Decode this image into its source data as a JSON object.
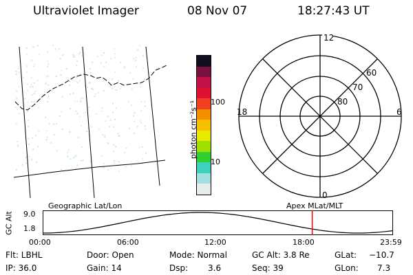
{
  "header": {
    "title": "Ultraviolet Imager",
    "date": "08 Nov 07",
    "time": "18:27:43 UT"
  },
  "colorbar": {
    "unit_label": "photon cm⁻²s⁻¹",
    "ticks": [
      "100",
      "10"
    ],
    "colors": [
      "#101020",
      "#7a1040",
      "#c01048",
      "#e01030",
      "#f04020",
      "#f49000",
      "#f8c000",
      "#e8e800",
      "#a0e000",
      "#30d030",
      "#40d0c0",
      "#a0e0e0",
      "#e6ecec"
    ]
  },
  "polar_plot": {
    "mlt_labels": [
      "12",
      "18",
      "6",
      "0"
    ],
    "lat_labels": [
      "60",
      "70",
      "80"
    ]
  },
  "map_panel": {
    "caption": "Geographic Lat/Lon"
  },
  "timeline": {
    "left_caption": "Geographic Lat/Lon",
    "right_caption": "Apex MLat/MLT",
    "axis_label": "GC Alt",
    "y_ticks": [
      "9.0",
      "1.8"
    ],
    "x_ticks": [
      "00:00",
      "06:00",
      "12:00",
      "18:00",
      "23:59"
    ],
    "marker_color": "#ff0000",
    "current_time_fraction": 0.769
  },
  "status": {
    "flt": "Flt: LBHL",
    "ip": "IP: 36.0",
    "door": "Door: Open",
    "gain": "Gain: 14",
    "mode": "Mode: Normal",
    "dsp_label": "Dsp:",
    "dsp_value": "3.6",
    "gc_alt": "GC Alt: 3.8 Re",
    "seq": "Seq: 39",
    "glat_label": "GLat:",
    "glat_value": "−10.7",
    "glon_label": "GLon:",
    "glon_value": "7.3"
  }
}
